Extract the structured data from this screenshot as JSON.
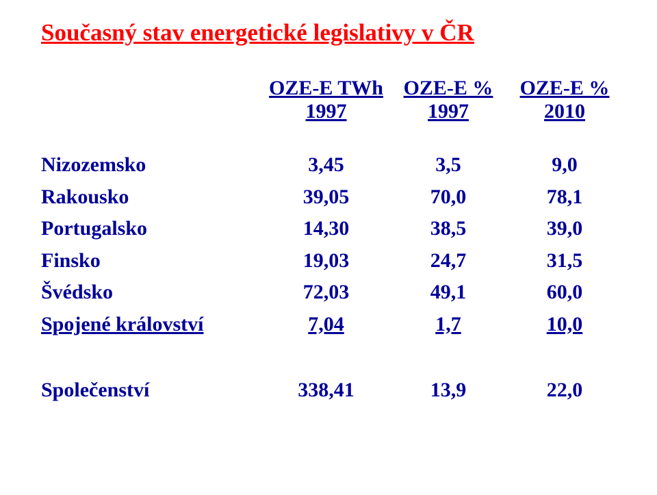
{
  "title": "Současný stav energetické legislativy v ČR",
  "colors": {
    "title": "#ff0000",
    "body": "#000099",
    "background": "#ffffff"
  },
  "typography": {
    "font_family": "Times New Roman",
    "title_fontsize_pt": 26,
    "body_fontsize_pt": 22,
    "title_weight": "bold",
    "body_weight": "bold",
    "title_underline": true,
    "header_underline": true
  },
  "table": {
    "type": "table",
    "columns": [
      "",
      "OZE-E TWh 1997",
      "OZE-E % 1997",
      "OZE-E % 2010"
    ],
    "rows": [
      [
        "Nizozemsko",
        "3,45",
        "3,5",
        "9,0"
      ],
      [
        "Rakousko",
        "39,05",
        "70,0",
        "78,1"
      ],
      [
        "Portugalsko",
        "14,30",
        "38,5",
        "39,0"
      ],
      [
        "Finsko",
        "19,03",
        "24,7",
        "31,5"
      ],
      [
        "Švédsko",
        "72,03",
        "49,1",
        "60,0"
      ],
      [
        "Spojené království",
        "7,04",
        "1,7",
        "10,0"
      ]
    ],
    "summary_row": [
      "Společenství",
      "338,41",
      "13,9",
      "22,0"
    ],
    "last_body_row_underlined": true,
    "column_align": [
      "left",
      "center",
      "center",
      "center"
    ],
    "column_width_pct": [
      38,
      22,
      20,
      20
    ]
  }
}
